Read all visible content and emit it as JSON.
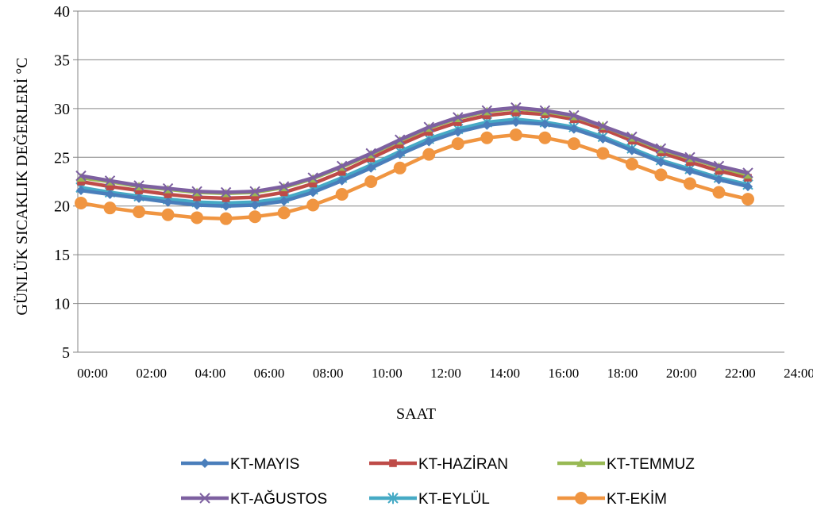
{
  "chart_data": {
    "type": "line",
    "title": "",
    "xlabel": "SAAT",
    "ylabel": "GÜNLÜK SICAKLIK DEĞERLERİ °C",
    "ylim": [
      5,
      40
    ],
    "yticks": [
      "5",
      "10",
      "15",
      "20",
      "25",
      "30",
      "35",
      "40"
    ],
    "xlim": [
      0,
      24
    ],
    "xticks": [
      "00:00",
      "02:00",
      "04:00",
      "06:00",
      "08:00",
      "10:00",
      "12:00",
      "14:00",
      "16:00",
      "18:00",
      "20:00",
      "22:00",
      "24:00"
    ],
    "grid": "horizontal",
    "legend_position": "bottom",
    "x": [
      0,
      1,
      2,
      3,
      4,
      5,
      6,
      7,
      8,
      9,
      10,
      11,
      12,
      13,
      14,
      15,
      16,
      17,
      18,
      19,
      20,
      21,
      22,
      23
    ],
    "series": [
      {
        "name": "KT-MAYIS",
        "color": "#4a7ebb",
        "marker": "diamond",
        "values": [
          21.6,
          21.2,
          20.8,
          20.4,
          20.1,
          20.0,
          20.1,
          20.5,
          21.4,
          22.6,
          23.9,
          25.3,
          26.6,
          27.6,
          28.3,
          28.6,
          28.4,
          27.9,
          26.9,
          25.7,
          24.5,
          23.6,
          22.7,
          22.0
        ]
      },
      {
        "name": "KT-HAZİRAN",
        "color": "#be4b48",
        "marker": "square",
        "values": [
          22.5,
          22.0,
          21.6,
          21.2,
          20.9,
          20.8,
          20.9,
          21.4,
          22.3,
          23.5,
          24.9,
          26.3,
          27.6,
          28.6,
          29.3,
          29.6,
          29.4,
          28.9,
          27.9,
          26.7,
          25.5,
          24.5,
          23.6,
          22.9
        ]
      },
      {
        "name": "KT-TEMMUZ",
        "color": "#98b954",
        "marker": "triangle",
        "values": [
          22.9,
          22.5,
          22.0,
          21.7,
          21.4,
          21.3,
          21.4,
          21.9,
          22.8,
          24.0,
          25.3,
          26.7,
          28.0,
          29.0,
          29.7,
          30.0,
          29.7,
          29.2,
          28.2,
          27.0,
          25.8,
          24.9,
          24.0,
          23.2
        ]
      },
      {
        "name": "KT-AĞUSTOS",
        "color": "#7d60a0",
        "marker": "x",
        "values": [
          23.1,
          22.6,
          22.1,
          21.8,
          21.5,
          21.4,
          21.5,
          22.0,
          22.9,
          24.1,
          25.4,
          26.8,
          28.1,
          29.1,
          29.8,
          30.1,
          29.8,
          29.3,
          28.2,
          27.1,
          25.9,
          25.0,
          24.1,
          23.4
        ]
      },
      {
        "name": "KT-EYLÜL",
        "color": "#46aac5",
        "marker": "star",
        "values": [
          21.9,
          21.4,
          21.0,
          20.7,
          20.4,
          20.3,
          20.4,
          20.8,
          21.7,
          22.9,
          24.2,
          25.6,
          26.9,
          27.9,
          28.6,
          28.9,
          28.6,
          28.1,
          27.1,
          25.9,
          24.7,
          23.8,
          22.9,
          22.2
        ]
      },
      {
        "name": "KT-EKİM",
        "color": "#f09541",
        "marker": "circle",
        "values": [
          20.3,
          19.8,
          19.4,
          19.1,
          18.8,
          18.7,
          18.9,
          19.3,
          20.1,
          21.2,
          22.5,
          23.9,
          25.3,
          26.4,
          27.0,
          27.3,
          27.0,
          26.4,
          25.4,
          24.3,
          23.2,
          22.3,
          21.4,
          20.7
        ]
      }
    ]
  }
}
